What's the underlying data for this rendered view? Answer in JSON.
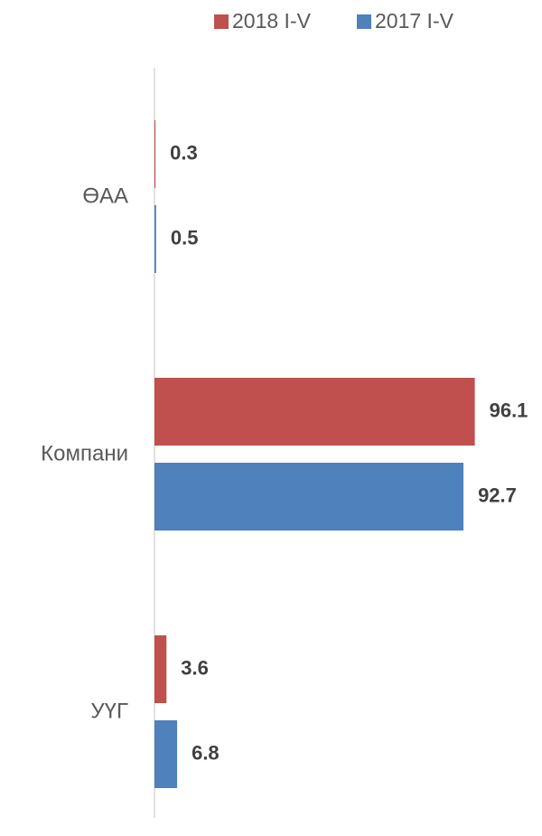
{
  "chart_data": {
    "type": "hbar",
    "categories": [
      "ӨАА",
      "Компани",
      "УҮГ"
    ],
    "series": [
      {
        "name": "2018 I-V",
        "color": "#c0504d",
        "values": [
          0.3,
          96.1,
          3.6
        ]
      },
      {
        "name": "2017 I-V",
        "color": "#4f81bd",
        "values": [
          0.5,
          92.7,
          6.8
        ]
      }
    ],
    "xlim": [
      0,
      100
    ],
    "legend": "top"
  }
}
